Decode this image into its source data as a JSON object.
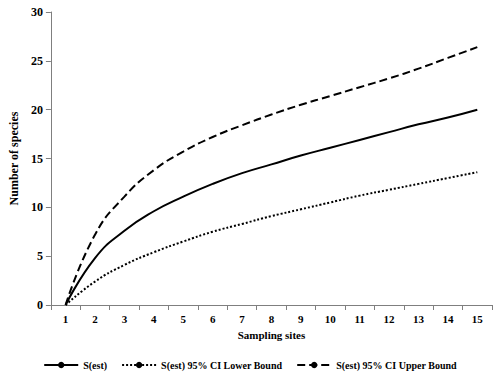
{
  "chart_data": {
    "type": "line",
    "x_label": "Sampling sites",
    "y_label": "Number of species",
    "categories": [
      "1",
      "2",
      "3",
      "4",
      "5",
      "6",
      "7",
      "8",
      "9",
      "10",
      "11",
      "12",
      "13",
      "14",
      "15"
    ],
    "series": [
      {
        "name": "S(est)",
        "color": "#000000",
        "line_style": "solid",
        "values": [
          0,
          4.8,
          7.6,
          9.6,
          11.1,
          12.4,
          13.5,
          14.4,
          15.3,
          16.1,
          16.9,
          17.7,
          18.5,
          19.2,
          20.0
        ]
      },
      {
        "name": "S(est) 95% CI Lower Bound",
        "color": "#000000",
        "line_style": "dotted",
        "values": [
          0,
          2.4,
          4.1,
          5.4,
          6.5,
          7.5,
          8.3,
          9.1,
          9.8,
          10.5,
          11.2,
          11.8,
          12.4,
          13.0,
          13.6
        ]
      },
      {
        "name": "S(est) 95% CI Upper Bound",
        "color": "#000000",
        "line_style": "dashed",
        "values": [
          0,
          7.2,
          11.1,
          13.8,
          15.7,
          17.2,
          18.4,
          19.5,
          20.5,
          21.4,
          22.3,
          23.2,
          24.2,
          25.3,
          26.4
        ]
      }
    ],
    "ylim": [
      0,
      30
    ],
    "yticks": [
      0,
      5,
      10,
      15,
      20,
      25,
      30
    ],
    "grid": false,
    "legend": "bottom",
    "marker": "none"
  }
}
